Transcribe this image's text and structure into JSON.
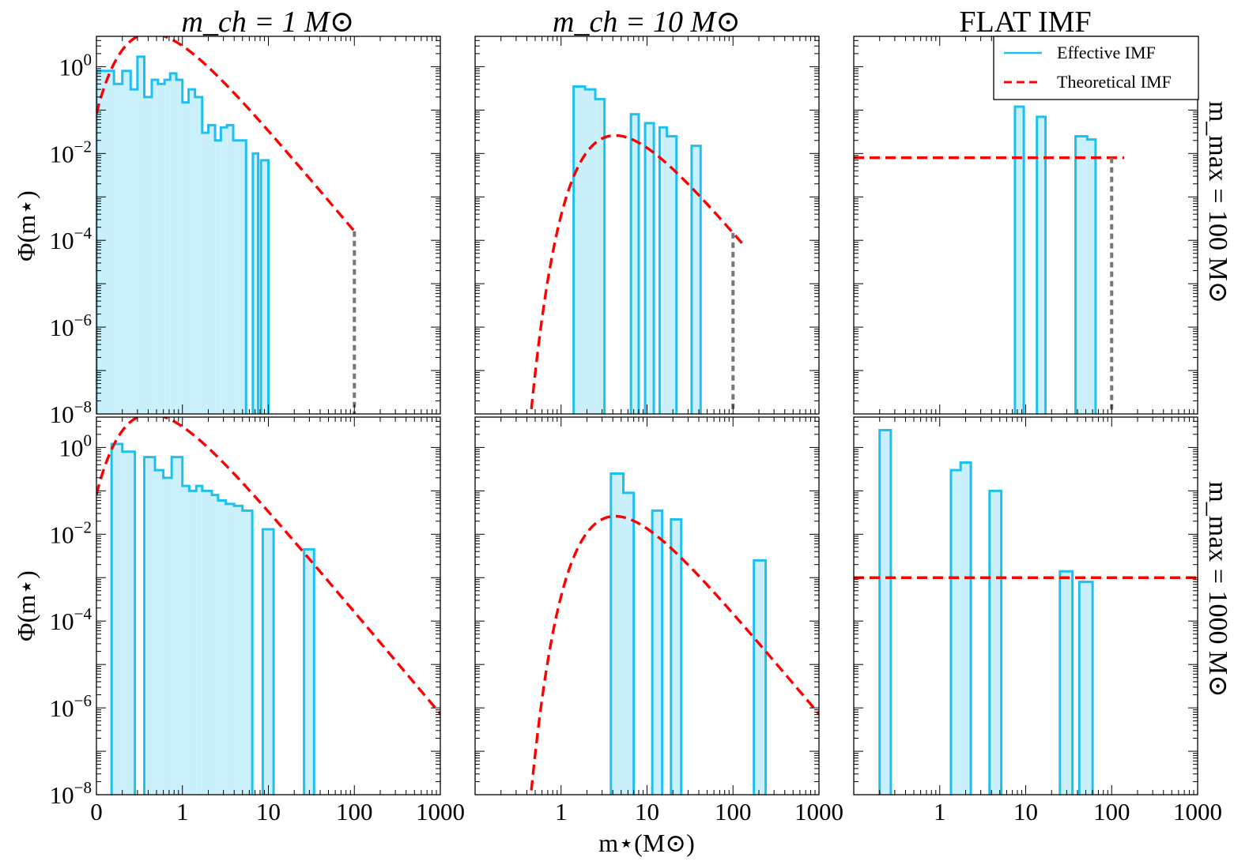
{
  "figure": {
    "column_titles": [
      "m_ch = 1 M⊙",
      "m_ch = 10 M⊙",
      "FLAT IMF"
    ],
    "row_labels": [
      "m_max = 100 M⊙",
      "m_max = 1000 M⊙"
    ],
    "ylabel": "Φ(m⋆)",
    "xlabel": "m⋆(M⊙)",
    "legend": [
      {
        "label": "Effective IMF",
        "style": "solid",
        "color": "#1ec0f0"
      },
      {
        "label": "Theoretical IMF",
        "style": "dashed",
        "color": "#ff0000"
      }
    ],
    "colors": {
      "hist_edge": "#1ec0f0",
      "hist_fill": "#caf0fb",
      "theory": "#ff0000",
      "cutoff": "#777777"
    }
  },
  "chart_data": [
    {
      "id": "r0c0",
      "type": "bar",
      "scale": "log-log",
      "title": "m_ch = 1 M⊙",
      "row": "m_max = 100 M⊙",
      "xlim": [
        0.1,
        1000
      ],
      "ylim": [
        1e-08,
        5
      ],
      "xtick_labels": [],
      "ytick_labels": [
        "10^0",
        "10^-2",
        "10^-4",
        "10^-6",
        "10^-8"
      ],
      "ylabel": "Φ(m⋆)",
      "bins": [
        [
          0.1,
          0.16,
          0.8
        ],
        [
          0.16,
          0.2,
          0.4
        ],
        [
          0.2,
          0.25,
          0.8
        ],
        [
          0.25,
          0.3,
          0.3
        ],
        [
          0.3,
          0.36,
          1.7
        ],
        [
          0.36,
          0.44,
          0.2
        ],
        [
          0.44,
          0.52,
          0.5
        ],
        [
          0.52,
          0.62,
          0.4
        ],
        [
          0.62,
          0.72,
          0.5
        ],
        [
          0.72,
          0.85,
          0.7
        ],
        [
          0.85,
          1.0,
          0.5
        ],
        [
          1.0,
          1.18,
          0.15
        ],
        [
          1.18,
          1.4,
          0.3
        ],
        [
          1.4,
          1.7,
          0.2
        ],
        [
          1.7,
          2.0,
          0.03
        ],
        [
          2.0,
          2.4,
          0.045
        ],
        [
          2.4,
          2.8,
          0.02
        ],
        [
          2.8,
          3.3,
          0.04
        ],
        [
          3.3,
          3.9,
          0.045
        ],
        [
          3.9,
          4.6,
          0.02
        ],
        [
          4.6,
          5.5,
          0.02
        ],
        [
          6.6,
          7.6,
          0.01
        ],
        [
          8.2,
          10.0,
          0.007
        ]
      ],
      "theory": {
        "kind": "larson",
        "mch": 1,
        "xmax": 100
      },
      "cutoff_x": 100
    },
    {
      "id": "r0c1",
      "type": "bar",
      "scale": "log-log",
      "title": "m_ch = 10 M⊙",
      "row": "m_max = 100 M⊙",
      "xlim": [
        0.1,
        1000
      ],
      "ylim": [
        1e-08,
        5
      ],
      "xtick_labels": [],
      "ytick_labels": [],
      "bins": [
        [
          1.4,
          1.9,
          0.35
        ],
        [
          1.9,
          2.5,
          0.3
        ],
        [
          2.5,
          3.2,
          0.18
        ],
        [
          6.5,
          8.0,
          0.08
        ],
        [
          9.5,
          12.0,
          0.05
        ],
        [
          14.0,
          17.0,
          0.04
        ],
        [
          17.0,
          22.0,
          0.025
        ],
        [
          33.0,
          42.0,
          0.015
        ]
      ],
      "theory": {
        "kind": "larson",
        "mch": 10,
        "xmax": 130
      },
      "cutoff_x": 100
    },
    {
      "id": "r0c2",
      "type": "bar",
      "scale": "log-log",
      "title": "FLAT IMF",
      "row": "m_max = 100 M⊙",
      "xlim": [
        0.1,
        1000
      ],
      "ylim": [
        1e-08,
        5
      ],
      "xtick_labels": [],
      "ytick_labels": [],
      "bins": [
        [
          7.5,
          9.5,
          0.12
        ],
        [
          13.5,
          17.0,
          0.07
        ],
        [
          38.0,
          52.0,
          0.025
        ],
        [
          52.0,
          65.0,
          0.021
        ]
      ],
      "theory": {
        "kind": "flat",
        "value": 0.008,
        "xmin": 0.1,
        "xmax": 140
      },
      "cutoff_x": 100
    },
    {
      "id": "r1c0",
      "type": "bar",
      "scale": "log-log",
      "row": "m_max = 1000 M⊙",
      "xlim": [
        0.1,
        1000
      ],
      "ylim": [
        1e-08,
        5
      ],
      "xtick_labels": [
        "0",
        "1",
        "10",
        "100",
        "1000"
      ],
      "ytick_labels": [
        "10^0",
        "10^-2",
        "10^-4",
        "10^-6",
        "10^-8"
      ],
      "ylabel": "Φ(m⋆)",
      "bins": [
        [
          0.15,
          0.2,
          1.2
        ],
        [
          0.2,
          0.28,
          0.8
        ],
        [
          0.36,
          0.48,
          0.6
        ],
        [
          0.48,
          0.6,
          0.3
        ],
        [
          0.6,
          0.75,
          0.2
        ],
        [
          0.75,
          1.0,
          0.6
        ],
        [
          1.0,
          1.2,
          0.13
        ],
        [
          1.2,
          1.45,
          0.1
        ],
        [
          1.45,
          1.7,
          0.13
        ],
        [
          1.7,
          2.2,
          0.1
        ],
        [
          2.2,
          2.6,
          0.08
        ],
        [
          2.6,
          3.2,
          0.06
        ],
        [
          3.2,
          4.0,
          0.05
        ],
        [
          4.0,
          5.0,
          0.045
        ],
        [
          5.0,
          6.5,
          0.035
        ],
        [
          8.6,
          11.5,
          0.013
        ],
        [
          26.0,
          34.0,
          0.0045
        ]
      ],
      "theory": {
        "kind": "larson",
        "mch": 1,
        "xmax": 1000
      },
      "cutoff_x": null
    },
    {
      "id": "r1c1",
      "type": "bar",
      "scale": "log-log",
      "row": "m_max = 1000 M⊙",
      "xlim": [
        0.1,
        1000
      ],
      "ylim": [
        1e-08,
        5
      ],
      "xtick_labels": [
        "1",
        "10",
        "100",
        "1000"
      ],
      "ytick_labels": [],
      "bins": [
        [
          3.8,
          5.3,
          0.25
        ],
        [
          5.3,
          7.0,
          0.09
        ],
        [
          11.5,
          15.0,
          0.035
        ],
        [
          19.0,
          25.0,
          0.022
        ],
        [
          175.0,
          240.0,
          0.0025
        ]
      ],
      "theory": {
        "kind": "larson",
        "mch": 10,
        "xmax": 1000
      },
      "cutoff_x": null
    },
    {
      "id": "r1c2",
      "type": "bar",
      "scale": "log-log",
      "row": "m_max = 1000 M⊙",
      "xlim": [
        0.1,
        1000
      ],
      "ylim": [
        1e-08,
        5
      ],
      "xtick_labels": [
        "1",
        "10",
        "100",
        "1000"
      ],
      "ytick_labels": [],
      "bins": [
        [
          0.2,
          0.27,
          2.5
        ],
        [
          1.35,
          1.75,
          0.3
        ],
        [
          1.75,
          2.3,
          0.45
        ],
        [
          3.8,
          5.2,
          0.1
        ],
        [
          25.0,
          35.0,
          0.0014
        ],
        [
          42.0,
          60.0,
          0.0008
        ]
      ],
      "theory": {
        "kind": "flat",
        "value": 0.001,
        "xmin": 0.1,
        "xmax": 1000
      },
      "cutoff_x": null
    }
  ]
}
